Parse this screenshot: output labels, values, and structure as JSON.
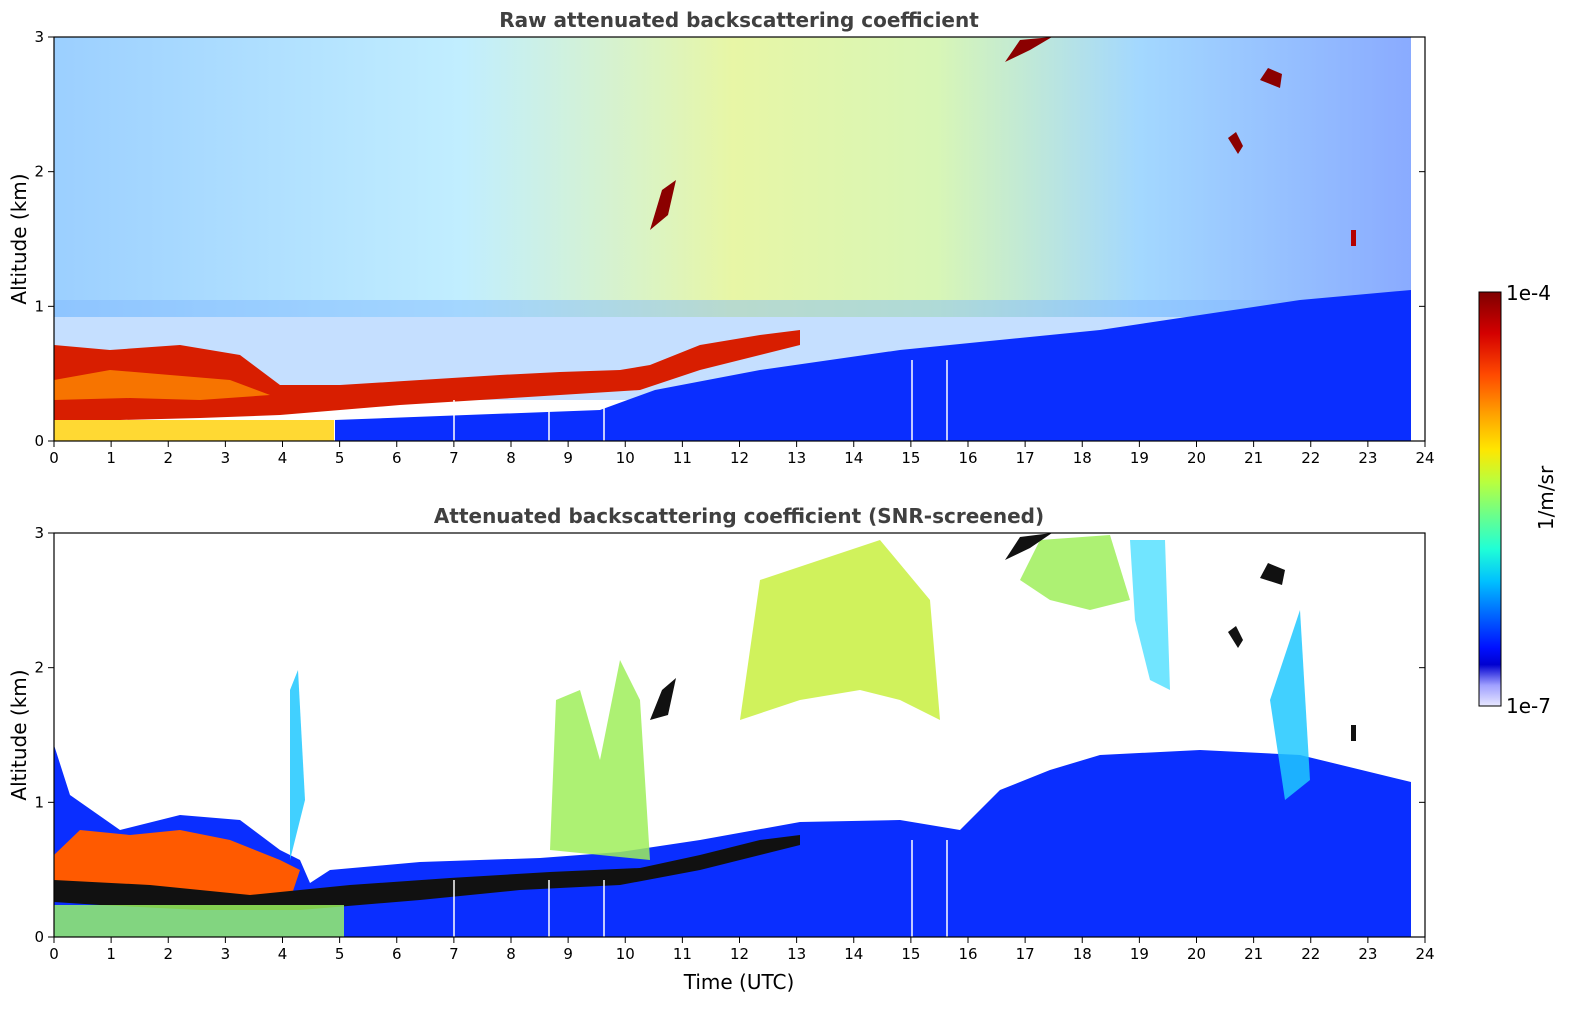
{
  "chart_data": [
    {
      "type": "heatmap",
      "title": "Raw attenuated backscattering coefficient",
      "xlabel": "",
      "ylabel": "Altitude (km)",
      "xlim": [
        0,
        24
      ],
      "ylim": [
        0,
        3
      ],
      "xticks": [
        "0",
        "1",
        "2",
        "3",
        "4",
        "5",
        "6",
        "7",
        "8",
        "9",
        "10",
        "11",
        "12",
        "13",
        "14",
        "15",
        "16",
        "17",
        "18",
        "19",
        "20",
        "21",
        "22",
        "23",
        "24"
      ],
      "yticks": [
        "0",
        "1",
        "2",
        "3"
      ],
      "data_end_time": 23.75,
      "boundary_layer_top_km": [
        {
          "t": 0,
          "z": 0.5
        },
        {
          "t": 2,
          "z": 0.45
        },
        {
          "t": 4,
          "z": 0.3
        },
        {
          "t": 6,
          "z": 0.35
        },
        {
          "t": 8,
          "z": 0.4
        },
        {
          "t": 10,
          "z": 0.45
        },
        {
          "t": 11,
          "z": 0.55
        },
        {
          "t": 13,
          "z": 0.75
        }
      ],
      "cloud_features": [
        {
          "t": 10.6,
          "z": 1.7
        },
        {
          "t": 17.2,
          "z": 2.95
        },
        {
          "t": 20.7,
          "z": 2.2
        },
        {
          "t": 21.3,
          "z": 2.7
        },
        {
          "t": 22.7,
          "z": 1.5
        }
      ]
    },
    {
      "type": "heatmap",
      "title": "Attenuated backscattering coefficient (SNR-screened)",
      "xlabel": "Time (UTC)",
      "ylabel": "Altitude (km)",
      "xlim": [
        0,
        24
      ],
      "ylim": [
        0,
        3
      ],
      "xticks": [
        "0",
        "1",
        "2",
        "3",
        "4",
        "5",
        "6",
        "7",
        "8",
        "9",
        "10",
        "11",
        "12",
        "13",
        "14",
        "15",
        "16",
        "17",
        "18",
        "19",
        "20",
        "21",
        "22",
        "23",
        "24"
      ],
      "yticks": [
        "0",
        "1",
        "2",
        "3"
      ],
      "data_end_time": 23.75,
      "screened_top_km": [
        {
          "t": 0,
          "z": 1.3
        },
        {
          "t": 0.5,
          "z": 0.8
        },
        {
          "t": 4.3,
          "z": 0.45
        },
        {
          "t": 9,
          "z": 0.55
        },
        {
          "t": 13,
          "z": 0.8
        },
        {
          "t": 16,
          "z": 0.9
        },
        {
          "t": 18,
          "z": 1.2
        },
        {
          "t": 23.7,
          "z": 1.1
        }
      ]
    }
  ],
  "colorbar": {
    "label": "1/m/sr",
    "max_label": "1e-4",
    "min_label": "1e-7",
    "colormap": [
      "#7f0000",
      "#d40000",
      "#ff4a00",
      "#ffa600",
      "#ffe600",
      "#b8ff3f",
      "#6aff8c",
      "#20ffd6",
      "#00bfff",
      "#0066ff",
      "#0010ff",
      "#0000d0",
      "#a0a0ff",
      "#e8e8ff"
    ]
  }
}
